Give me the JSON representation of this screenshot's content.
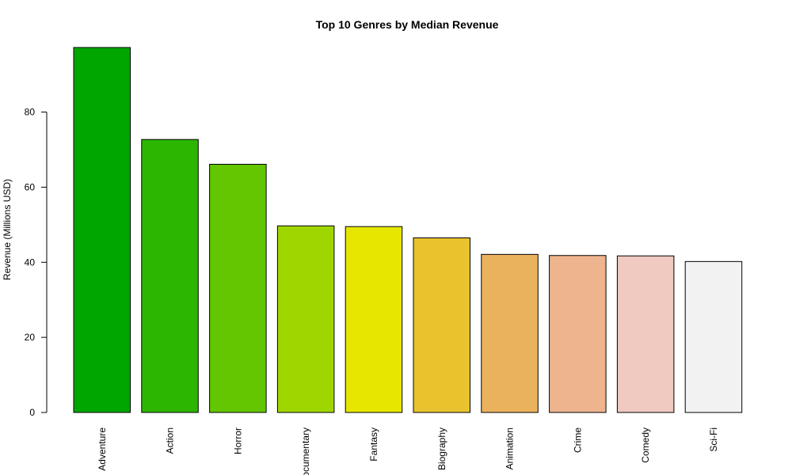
{
  "chart_data": {
    "type": "bar",
    "title": "Top 10 Genres by Median Revenue",
    "xlabel": "",
    "ylabel": "Revenue (Millions USD)",
    "categories": [
      "Adventure",
      "Action",
      "Horror",
      "Documentary",
      "Fantasy",
      "Biography",
      "Animation",
      "Crime",
      "Comedy",
      "Sci-Fi"
    ],
    "values": [
      97.2,
      72.7,
      66.1,
      49.7,
      49.5,
      46.5,
      42.1,
      41.8,
      41.7,
      40.2
    ],
    "colors": [
      "#00A600",
      "#2DB600",
      "#63C600",
      "#A0D600",
      "#E6E600",
      "#E8C32E",
      "#EBB25E",
      "#EDB48E",
      "#F0C9C0",
      "#F2F2F2"
    ],
    "yticks": [
      0,
      20,
      40,
      60,
      80
    ],
    "ylim": [
      0,
      97.2
    ],
    "grid": false,
    "legend": "none"
  }
}
